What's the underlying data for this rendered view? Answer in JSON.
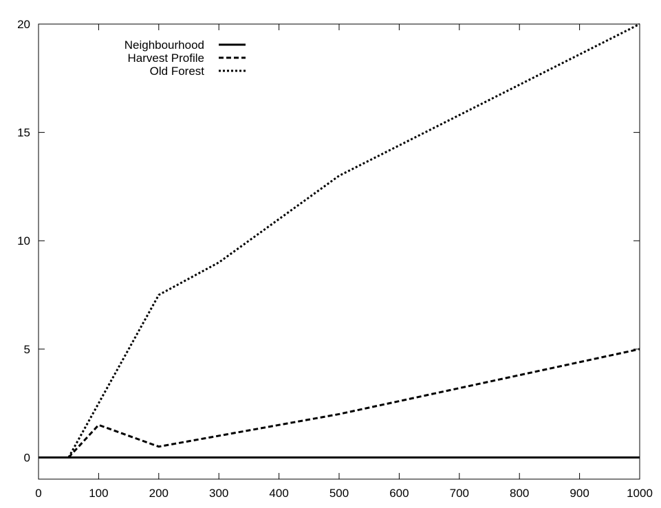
{
  "chart_data": {
    "type": "line",
    "title": "",
    "xlabel": "",
    "ylabel": "",
    "xlim": [
      0,
      1000
    ],
    "ylim": [
      -1,
      20
    ],
    "xticks": [
      0,
      100,
      200,
      300,
      400,
      500,
      600,
      700,
      800,
      900,
      1000
    ],
    "yticks": [
      0,
      5,
      10,
      15,
      20
    ],
    "xtick_labels": [
      "0",
      "100",
      "200",
      "300",
      "400",
      "500",
      "600",
      "700",
      "800",
      "900",
      "1000"
    ],
    "ytick_labels": [
      "0",
      "5",
      "10",
      "15",
      "20"
    ],
    "grid": false,
    "legend_position": "top-left",
    "series": [
      {
        "name": "Neighbourhood",
        "style": "solid",
        "color": "#000000",
        "points": [
          [
            0,
            0
          ],
          [
            50,
            0
          ],
          [
            100,
            0
          ],
          [
            200,
            0
          ],
          [
            300,
            0
          ],
          [
            500,
            0
          ],
          [
            1000,
            0
          ]
        ]
      },
      {
        "name": "Harvest Profile",
        "style": "dashed",
        "color": "#000000",
        "points": [
          [
            50,
            0
          ],
          [
            100,
            1.5
          ],
          [
            200,
            0.5
          ],
          [
            300,
            1
          ],
          [
            500,
            2
          ],
          [
            1000,
            5
          ]
        ]
      },
      {
        "name": "Old Forest",
        "style": "dotted",
        "color": "#000000",
        "points": [
          [
            50,
            0
          ],
          [
            100,
            2.5
          ],
          [
            200,
            7.5
          ],
          [
            300,
            9
          ],
          [
            500,
            13
          ],
          [
            1000,
            20
          ]
        ]
      }
    ]
  }
}
